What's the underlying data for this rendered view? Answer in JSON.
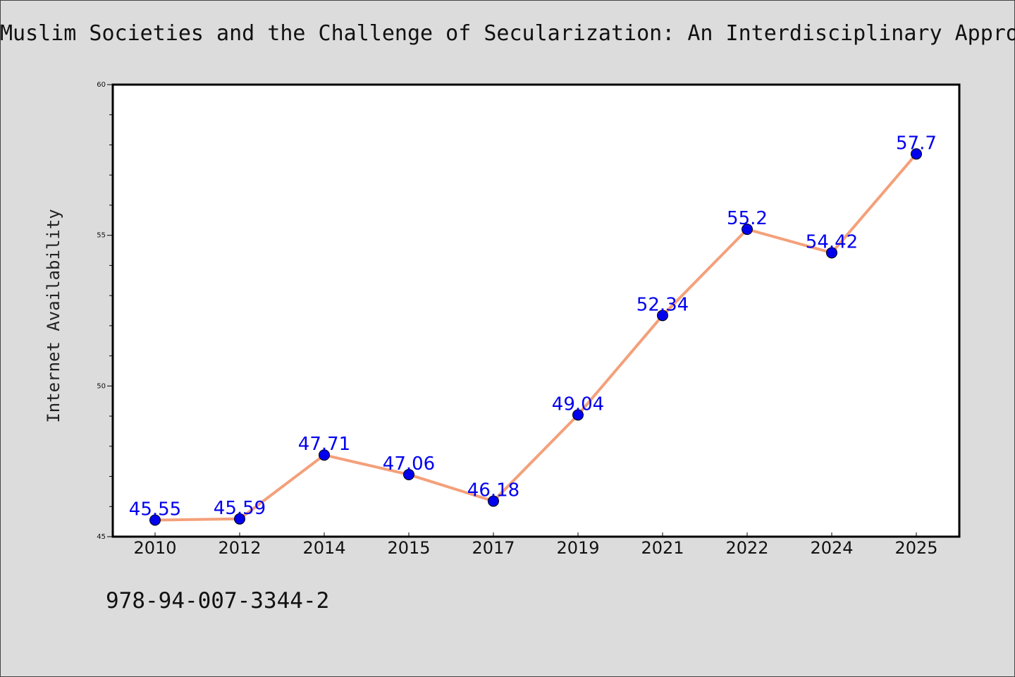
{
  "page": {
    "isbn": "978-94-007-3344-2"
  },
  "chart_data": {
    "type": "line",
    "title": "Muslim Societies and the Challenge of Secularization: An Interdisciplinary Appro",
    "xlabel": "",
    "ylabel": "Internet Availability",
    "categories": [
      "2010",
      "2012",
      "2014",
      "2015",
      "2017",
      "2019",
      "2021",
      "2022",
      "2024",
      "2025"
    ],
    "series": [
      {
        "values": [
          45.55,
          45.59,
          47.71,
          47.06,
          46.18,
          49.04,
          52.34,
          55.2,
          54.42,
          57.7
        ],
        "labels": [
          "45.55",
          "45.59",
          "47.71",
          "47.06",
          "46.18",
          "49.04",
          "52.34",
          "55.2",
          "54.42",
          "57.7"
        ],
        "line_color": "#f4a07a",
        "marker_color": "#0000ee"
      }
    ],
    "ylim": [
      45,
      60
    ],
    "yticks": [
      45,
      50,
      55,
      60
    ],
    "grid": false,
    "legend": "none"
  }
}
